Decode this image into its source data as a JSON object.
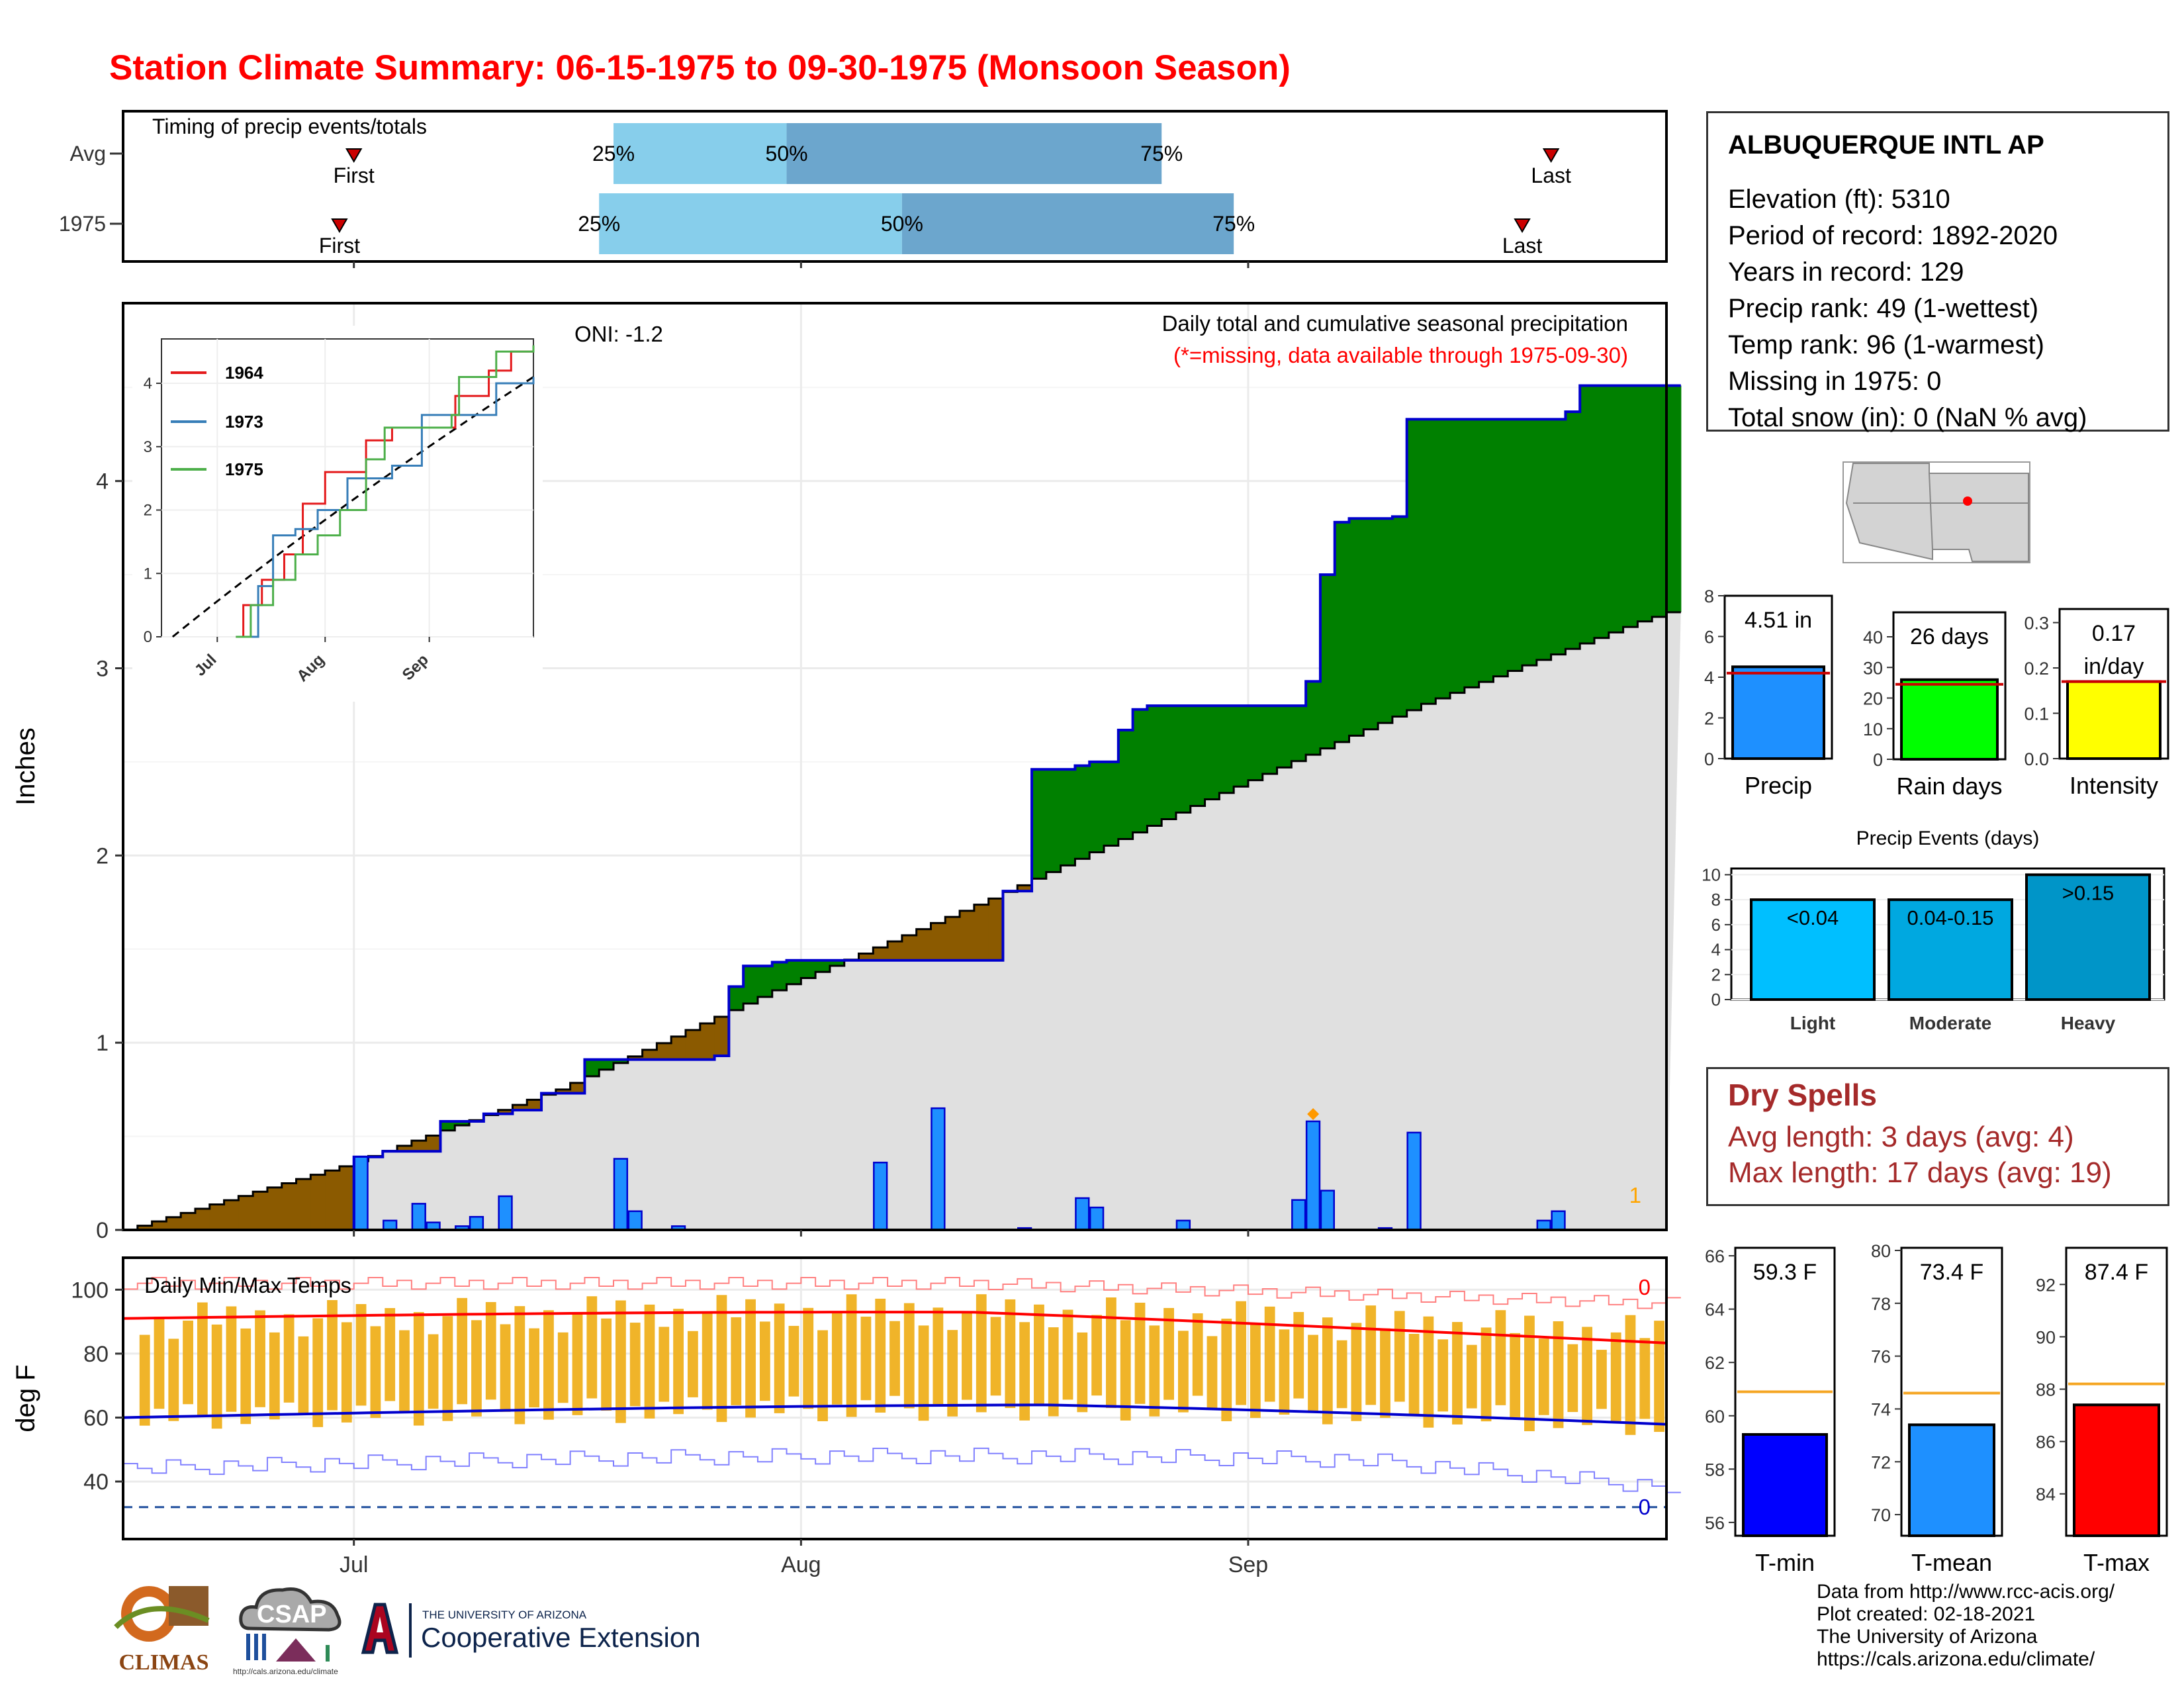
{
  "title": "Station Climate Summary: 06-15-1975 to 09-30-1975 (Monsoon Season)",
  "station": {
    "name": "ALBUQUERQUE INTL AP",
    "lines": [
      "Elevation (ft): 5310",
      "Period of record: 1892-2020",
      "Years in record: 129",
      "Precip rank: 49 (1-wettest)",
      "Temp rank: 96 (1-warmest)",
      "Missing in 1975: 0",
      "Total snow (in): 0 (NaN % avg)"
    ]
  },
  "dry_spells": {
    "title": "Dry Spells",
    "avg_length": "Avg length: 3 days (avg: 4)",
    "max_length": "Max length: 17 days (avg: 19)"
  },
  "credits": [
    "Data from http://www.rcc-acis.org/",
    "Plot created: 02-18-2021",
    "The University of Arizona",
    "https://cals.arizona.edu/climate/"
  ],
  "logos": {
    "climas": "CLIMAS",
    "csap": "CSAP",
    "csap_url": "http://cals.arizona.edu/climate",
    "ua_line1": "THE UNIVERSITY OF ARIZONA",
    "ua_line2": "Cooperative Extension"
  },
  "colors": {
    "title_red": "#ff0000",
    "surplus_green": "#008000",
    "deficit_brown": "#8b5a00",
    "cumulative_blue": "#0000cd",
    "daily_bar_blue": "#1e90ff",
    "normal_gray": "#e0e0e0",
    "quartile_light": "#87ceeb",
    "quartile_dark": "#6ca6cd",
    "temp_bar": "#f0b429",
    "tmax_line": "#ff0000",
    "tmin_line": "#0000cd",
    "dry_spells": "#a52a2a"
  },
  "chart_data": [
    {
      "id": "timing",
      "type": "bar",
      "title": "Timing of precip events/totals",
      "rows": [
        {
          "label": "Avg",
          "first": "2024-07-01",
          "p25": "2024-07-19",
          "p50": "2024-07-31",
          "p75": "2024-08-26",
          "last": "2024-09-22",
          "first_label": "First",
          "last_label": "Last",
          "p25_label": "25%",
          "p50_label": "50%",
          "p75_label": "75%"
        },
        {
          "label": "1975",
          "first": "2024-06-30",
          "p25": "2024-07-18",
          "p50": "2024-08-08",
          "p75": "2024-08-31",
          "last": "2024-09-20",
          "first_label": "First",
          "last_label": "Last",
          "p25_label": "25%",
          "p50_label": "50%",
          "p75_label": "75%"
        }
      ],
      "xlim": [
        "2024-06-15",
        "2024-09-30"
      ]
    },
    {
      "id": "precip",
      "type": "area",
      "title": "Daily total and cumulative seasonal precipitation",
      "subtitle": "(*=missing, data available through 1975-09-30)",
      "annotation": "ONI: -1.2",
      "missing_count_label": "1",
      "ylabel": "Inches",
      "ylim": [
        0,
        4.95
      ],
      "yticks": [
        0,
        1,
        2,
        3,
        4
      ],
      "xlim": [
        "2024-06-15",
        "2024-09-30"
      ],
      "xticks": [
        "Jul",
        "Aug",
        "Sep"
      ],
      "normal_cumulative": [
        [
          15,
          0.0
        ],
        [
          30,
          0.34
        ],
        [
          45,
          0.75
        ],
        [
          60,
          1.28
        ],
        [
          75,
          1.77
        ],
        [
          90,
          2.3
        ],
        [
          105,
          2.81
        ],
        [
          120,
          3.25
        ],
        [
          135,
          3.62
        ],
        [
          150,
          3.99
        ],
        [
          167,
          4.09
        ]
      ],
      "observed_cumulative_steps": [
        [
          15,
          0
        ],
        [
          31,
          0.39
        ],
        [
          33,
          0.42
        ],
        [
          37,
          0.58
        ],
        [
          40,
          0.62
        ],
        [
          42,
          0.64
        ],
        [
          44,
          0.73
        ],
        [
          47,
          0.91
        ],
        [
          56,
          0.93
        ],
        [
          57,
          1.3
        ],
        [
          58,
          1.41
        ],
        [
          60,
          1.43
        ],
        [
          61,
          1.44
        ],
        [
          66,
          1.44
        ],
        [
          67,
          1.44
        ],
        [
          75,
          1.44
        ],
        [
          76,
          1.81
        ],
        [
          78,
          2.46
        ],
        [
          81,
          2.48
        ],
        [
          82,
          2.5
        ],
        [
          84,
          2.67
        ],
        [
          85,
          2.78
        ],
        [
          86,
          2.8
        ],
        [
          91,
          2.8
        ],
        [
          94,
          2.8
        ],
        [
          97,
          2.93
        ],
        [
          98,
          3.5
        ],
        [
          99,
          3.78
        ],
        [
          100,
          3.8
        ],
        [
          103,
          3.81
        ],
        [
          104,
          4.33
        ],
        [
          115,
          4.37
        ],
        [
          116,
          4.51
        ],
        [
          125,
          4.51
        ],
        [
          130,
          4.51
        ]
      ],
      "daily_precip": [
        [
          31,
          0.39
        ],
        [
          33,
          0.05
        ],
        [
          35,
          0.14
        ],
        [
          36,
          0.04
        ],
        [
          38,
          0.02
        ],
        [
          39,
          0.07
        ],
        [
          41,
          0.18
        ],
        [
          49,
          0.38
        ],
        [
          50,
          0.1
        ],
        [
          53,
          0.02
        ],
        [
          67,
          0.36
        ],
        [
          71,
          0.65
        ],
        [
          77,
          0.01
        ],
        [
          81,
          0.17
        ],
        [
          82,
          0.12
        ],
        [
          88,
          0.05
        ],
        [
          96,
          0.16
        ],
        [
          97,
          0.58
        ],
        [
          98,
          0.21
        ],
        [
          102,
          0.01
        ],
        [
          104,
          0.52
        ],
        [
          113,
          0.05
        ],
        [
          114,
          0.1
        ]
      ],
      "trace_marker": [
        97,
        0.58
      ]
    },
    {
      "id": "cumulative_inset",
      "type": "line",
      "ylim": [
        0,
        4.7
      ],
      "yticks": [
        0,
        1,
        2,
        3,
        4
      ],
      "xticks": [
        "Jul",
        "Aug",
        "Sep"
      ],
      "series": [
        {
          "name": "1964",
          "color": "#e41a1c"
        },
        {
          "name": "1973",
          "color": "#377eb8"
        },
        {
          "name": "1975",
          "color": "#4daf4a"
        }
      ]
    },
    {
      "id": "temps",
      "type": "bar",
      "title": "Daily Min/Max Temps",
      "ylabel": "deg F",
      "ylim": [
        22,
        110
      ],
      "yticks": [
        40,
        60,
        80,
        100
      ],
      "xticks": [
        "Jul",
        "Aug",
        "Sep"
      ],
      "max_count_label": "0",
      "min_count_label": "0",
      "freeze_line": 32
    },
    {
      "id": "season_totals",
      "type": "bar",
      "panels": [
        {
          "category": "Precip",
          "value": 4.51,
          "label": "4.51 in",
          "avg": 4.2,
          "ylim": [
            0,
            8
          ],
          "yticks": [
            0,
            2,
            4,
            6,
            8
          ],
          "color": "#1e90ff"
        },
        {
          "category": "Rain days",
          "value": 26,
          "label": "26 days",
          "avg": 24.5,
          "ylim": [
            0,
            48
          ],
          "yticks": [
            0,
            10,
            20,
            30,
            40
          ],
          "color": "#00ff00"
        },
        {
          "category": "Intensity",
          "value": 0.17,
          "label_top": "0.17",
          "label_bottom": "in/day",
          "avg": 0.17,
          "ylim": [
            0,
            0.33
          ],
          "yticks": [
            "0.0",
            "0.1",
            "0.2",
            "0.3"
          ],
          "color": "#ffff00"
        }
      ]
    },
    {
      "id": "precip_events",
      "type": "bar",
      "title": "Precip Events (days)",
      "categories": [
        "Light",
        "Moderate",
        "Heavy"
      ],
      "values": [
        8,
        8,
        10
      ],
      "labels": [
        "<0.04",
        "0.04-0.15",
        ">0.15"
      ],
      "ylim": [
        0,
        10.5
      ],
      "yticks": [
        0,
        2,
        4,
        6,
        8,
        10
      ]
    },
    {
      "id": "temp_means",
      "type": "bar",
      "panels": [
        {
          "category": "T-min",
          "value": 59.3,
          "label": "59.3 F",
          "avg": 60.9,
          "ylim": [
            55.5,
            66.3
          ],
          "yticks": [
            56,
            58,
            60,
            62,
            64,
            66
          ],
          "color": "#0000ff"
        },
        {
          "category": "T-mean",
          "value": 73.4,
          "label": "73.4 F",
          "avg": 74.6,
          "ylim": [
            69.2,
            80.1
          ],
          "yticks": [
            70,
            72,
            74,
            76,
            78,
            80
          ],
          "color": "#1e90ff"
        },
        {
          "category": "T-max",
          "value": 87.4,
          "label": "87.4 F",
          "avg": 88.2,
          "ylim": [
            82.4,
            93.4
          ],
          "yticks": [
            84,
            86,
            88,
            90,
            92
          ],
          "color": "#ff0000"
        }
      ]
    }
  ]
}
